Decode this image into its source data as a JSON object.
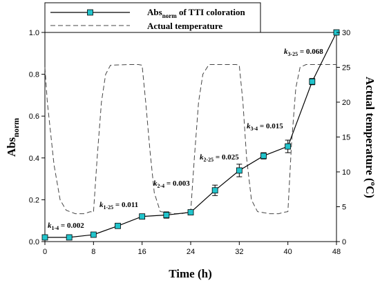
{
  "chart_data": {
    "type": "line",
    "xlabel": "Time (h)",
    "x_ticks": [
      "0",
      "8",
      "16",
      "24",
      "32",
      "40",
      "48"
    ],
    "xlim": [
      0,
      48
    ],
    "ylabel_left": {
      "main": "Abs",
      "sub": "norm"
    },
    "ylim_left": [
      0,
      1.0
    ],
    "y_ticks_left": [
      "0.0",
      "0.2",
      "0.4",
      "0.6",
      "0.8",
      "1.0"
    ],
    "ylabel_right": {
      "main": "Actual temperature (",
      "sup": "o",
      "rest": "C)"
    },
    "ylim_right": [
      0,
      30
    ],
    "y_ticks_right": [
      "0",
      "5",
      "10",
      "15",
      "20",
      "25",
      "30"
    ],
    "legend": {
      "position": "top-left",
      "abs": {
        "main": "Abs",
        "sub": "norm",
        "rest": " of TTI coloration"
      },
      "temp": "Actual temperature"
    },
    "series": [
      {
        "name": "Absnorm of TTI coloration",
        "axis": "left",
        "style": "solid-line-square-markers",
        "marker_color": "#22c4cc",
        "x": [
          0,
          4,
          8,
          12,
          16,
          20,
          24,
          28,
          32,
          36,
          40,
          44,
          48
        ],
        "y": [
          0.02,
          0.02,
          0.033,
          0.075,
          0.12,
          0.127,
          0.14,
          0.245,
          0.34,
          0.41,
          0.455,
          0.765,
          1.0
        ],
        "err": [
          0.005,
          0.005,
          0.005,
          0.005,
          0.005,
          0.015,
          0.01,
          0.025,
          0.03,
          0.015,
          0.03,
          0.015,
          0.0
        ]
      },
      {
        "name": "Actual temperature",
        "axis": "right",
        "style": "dashed-line",
        "x": [
          0,
          0.4,
          1.5,
          2.5,
          3.5,
          5,
          6.5,
          7.5,
          8,
          8.6,
          9.3,
          10,
          10.8,
          14,
          15.4,
          16,
          16.6,
          17.3,
          18,
          19,
          21.5,
          22.5,
          23.5,
          24,
          24.6,
          25.3,
          26,
          27,
          30,
          31.5,
          32,
          32.6,
          33.2,
          34,
          35,
          37,
          38.5,
          39.3,
          40,
          40.6,
          41.3,
          42,
          43,
          48
        ],
        "y": [
          25,
          20,
          11,
          6,
          4.5,
          4,
          4,
          4.3,
          4.2,
          12,
          20,
          24,
          25.3,
          25.4,
          25.4,
          25.3,
          20,
          13,
          7,
          4.3,
          4,
          4,
          4.2,
          4.3,
          12,
          20,
          24,
          25.4,
          25.4,
          25.4,
          25.3,
          20,
          12,
          6,
          4.3,
          4,
          4,
          4.2,
          4.3,
          14,
          22,
          25,
          25.4,
          25.4
        ]
      }
    ],
    "annotations": [
      {
        "k": "k",
        "sub": "1-4",
        "val": " = 0.002"
      },
      {
        "k": "k",
        "sub": "1-25",
        "val": " = 0.011"
      },
      {
        "k": "k",
        "sub": "2-4",
        "val": " = 0.003"
      },
      {
        "k": "k",
        "sub": "2-25",
        "val": " = 0.025"
      },
      {
        "k": "k",
        "sub": "3-4",
        "val": " = 0.015"
      },
      {
        "k": "k",
        "sub": "3-25",
        "val": " = 0.068"
      }
    ],
    "grid": false
  }
}
